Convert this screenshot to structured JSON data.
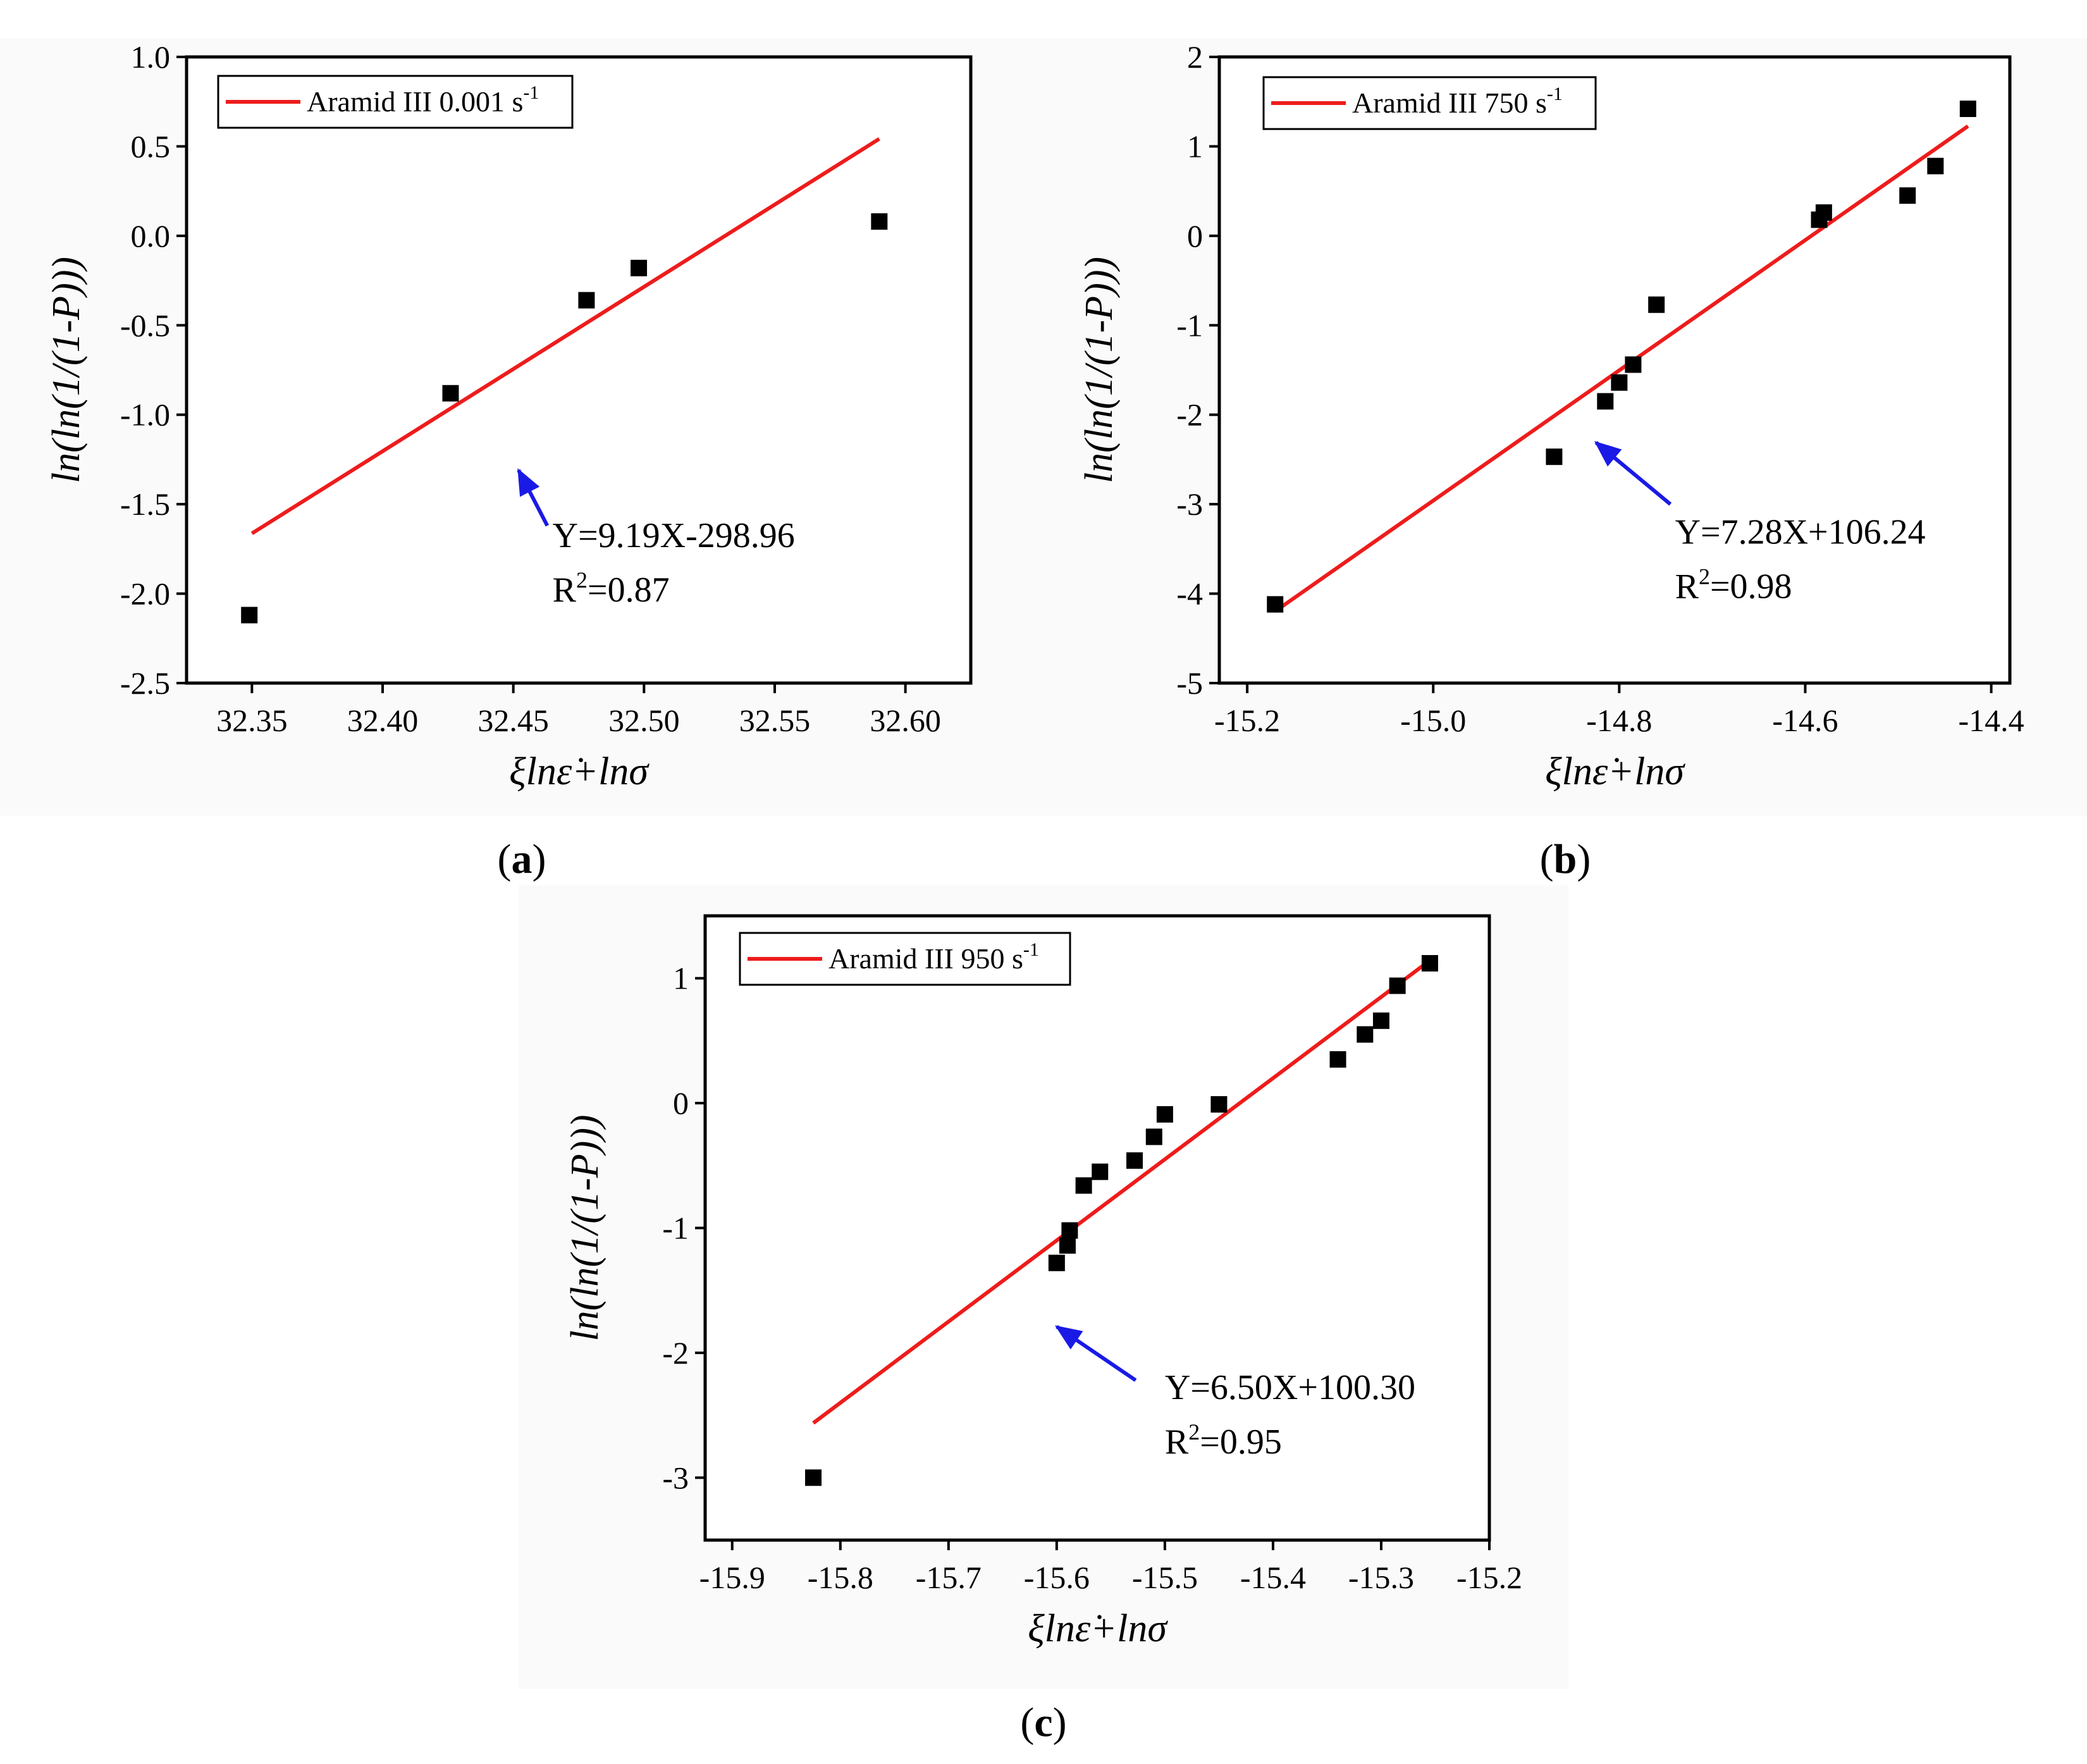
{
  "colors": {
    "fit_line": "#ee1c1c",
    "arrow": "#1a1ae6",
    "points": "#000000"
  },
  "chart_data": [
    {
      "type": "scatter",
      "panel": "a",
      "caption": "(a)",
      "xlabel": "ξlnε̇+lnσ",
      "ylabel": "ln(ln(1/(1-P)))",
      "xlim": [
        32.325,
        32.625
      ],
      "ylim": [
        -2.5,
        1.0
      ],
      "x_ticks": [
        32.35,
        32.4,
        32.45,
        32.5,
        32.55,
        32.6
      ],
      "x_tick_labels": [
        "32.35",
        "32.40",
        "32.45",
        "32.50",
        "32.55",
        "32.60"
      ],
      "y_ticks": [
        1.0,
        0.5,
        0.0,
        -0.5,
        -1.0,
        -1.5,
        -2.0,
        -2.5
      ],
      "y_tick_labels": [
        "1.0",
        "0.5",
        "0.0",
        "-0.5",
        "-1.0",
        "-1.5",
        "-2.0",
        "-2.5"
      ],
      "legend": {
        "label": "Aramid III 0.001 s",
        "superscript": "-1",
        "position": "top-left"
      },
      "points": {
        "x": [
          32.349,
          32.426,
          32.478,
          32.498,
          32.59
        ],
        "y": [
          -2.12,
          -0.88,
          -0.36,
          -0.18,
          0.08
        ]
      },
      "fit": {
        "slope": 9.19,
        "intercept": -298.96,
        "x_range": [
          32.35,
          32.59
        ]
      },
      "equation": "Y=9.19X-298.96",
      "r2_label": "R",
      "r2_sup": "2",
      "r2_value": "=0.87",
      "arrow": {
        "from": [
          32.463,
          -1.62
        ],
        "to": [
          32.452,
          -1.31
        ]
      },
      "eq_pos": [
        32.465,
        -1.74
      ]
    },
    {
      "type": "scatter",
      "panel": "b",
      "caption": "(b)",
      "xlabel": "ξlnε̇+lnσ",
      "ylabel": "ln(ln(1/(1-P)))",
      "xlim": [
        -15.23,
        -14.38
      ],
      "ylim": [
        -5,
        2
      ],
      "x_ticks": [
        -15.2,
        -15.0,
        -14.8,
        -14.6,
        -14.4
      ],
      "x_tick_labels": [
        "-15.2",
        "-15.0",
        "-14.8",
        "-14.6",
        "-14.4"
      ],
      "y_ticks": [
        2,
        1,
        0,
        -1,
        -2,
        -3,
        -4,
        -5
      ],
      "y_tick_labels": [
        "2",
        "1",
        "0",
        "-1",
        "-2",
        "-3",
        "-4",
        "-5"
      ],
      "legend": {
        "label": "Aramid III 750 s",
        "superscript": "-1",
        "position": "top-left"
      },
      "points": {
        "x": [
          -15.17,
          -14.87,
          -14.815,
          -14.8,
          -14.785,
          -14.76,
          -14.585,
          -14.58,
          -14.49,
          -14.46,
          -14.425
        ],
        "y": [
          -4.12,
          -2.47,
          -1.85,
          -1.64,
          -1.44,
          -0.77,
          0.18,
          0.26,
          0.45,
          0.78,
          1.42
        ]
      },
      "fit": {
        "slope": 7.28,
        "intercept": 106.24,
        "x_range": [
          -15.17,
          -14.425
        ]
      },
      "equation": "Y=7.28X+106.24",
      "r2_label": "R",
      "r2_sup": "2",
      "r2_value": "=0.98",
      "arrow": {
        "from": [
          -14.745,
          -3.0
        ],
        "to": [
          -14.825,
          -2.31
        ]
      },
      "eq_pos": [
        -14.74,
        -3.44
      ]
    },
    {
      "type": "scatter",
      "panel": "c",
      "caption": "(c)",
      "xlabel": "ξlnε̇+lnσ",
      "ylabel": "ln(ln(1/(1-P)))",
      "xlim": [
        -15.925,
        -15.2
      ],
      "ylim": [
        -3.5,
        1.5
      ],
      "x_ticks": [
        -15.9,
        -15.8,
        -15.7,
        -15.6,
        -15.5,
        -15.4,
        -15.3,
        -15.2
      ],
      "x_tick_labels": [
        "-15.9",
        "-15.8",
        "-15.7",
        "-15.6",
        "-15.5",
        "-15.4",
        "-15.3",
        "-15.2"
      ],
      "y_ticks": [
        1,
        0,
        -1,
        -2,
        -3
      ],
      "y_tick_labels": [
        "1",
        "0",
        "-1",
        "-2",
        "-3"
      ],
      "legend": {
        "label": "Aramid III 950 s",
        "superscript": "-1",
        "position": "top-left"
      },
      "points": {
        "x": [
          -15.825,
          -15.6,
          -15.59,
          -15.588,
          -15.575,
          -15.56,
          -15.528,
          -15.51,
          -15.5,
          -15.45,
          -15.34,
          -15.315,
          -15.3,
          -15.285,
          -15.255
        ],
        "y": [
          -3.0,
          -1.28,
          -1.14,
          -1.02,
          -0.66,
          -0.55,
          -0.46,
          -0.27,
          -0.09,
          -0.01,
          0.35,
          0.55,
          0.66,
          0.94,
          1.12
        ]
      },
      "fit": {
        "slope": 6.5,
        "intercept": 100.3,
        "x_range": [
          -15.825,
          -15.255
        ]
      },
      "equation": "Y=6.50X+100.30",
      "r2_label": "R",
      "r2_sup": "2",
      "r2_value": "=0.95",
      "arrow": {
        "from": [
          -15.527,
          -2.22
        ],
        "to": [
          -15.6,
          -1.79
        ]
      },
      "eq_pos": [
        -15.5,
        -2.37
      ]
    }
  ]
}
